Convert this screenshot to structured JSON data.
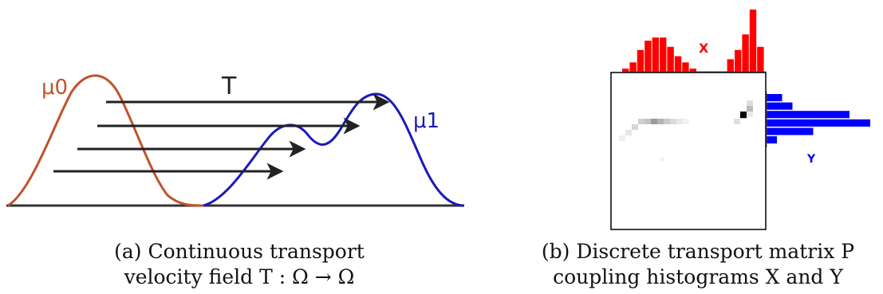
{
  "figure_a": {
    "label_mu0": "μ0",
    "label_mu1": "μ1",
    "label_T": "T",
    "caption_line1": "(a) Continuous transport",
    "caption_line2": "velocity field T : Ω → Ω",
    "colors": {
      "mu0": "#c0532a",
      "mu1": "#1a1ab8",
      "arrow": "#222222",
      "axis": "#333333"
    }
  },
  "figure_b": {
    "label_X": "X",
    "label_Y": "Y",
    "caption_line1": "(b) Discrete transport matrix P",
    "caption_line2": "coupling histograms X and Y",
    "colors": {
      "hist_x": "#ff0000",
      "hist_y": "#0000ff",
      "matrix_frame": "#000000"
    },
    "hist_x_values": [
      0.05,
      0.15,
      0.35,
      0.5,
      0.55,
      0.55,
      0.4,
      0.25,
      0.15,
      0.05,
      0,
      0,
      0,
      0,
      0.2,
      0.35,
      0.6,
      1.0,
      0.4
    ],
    "hist_y_values": [
      0.15,
      0.25,
      0.8,
      1.0,
      0.45,
      0.1
    ]
  }
}
